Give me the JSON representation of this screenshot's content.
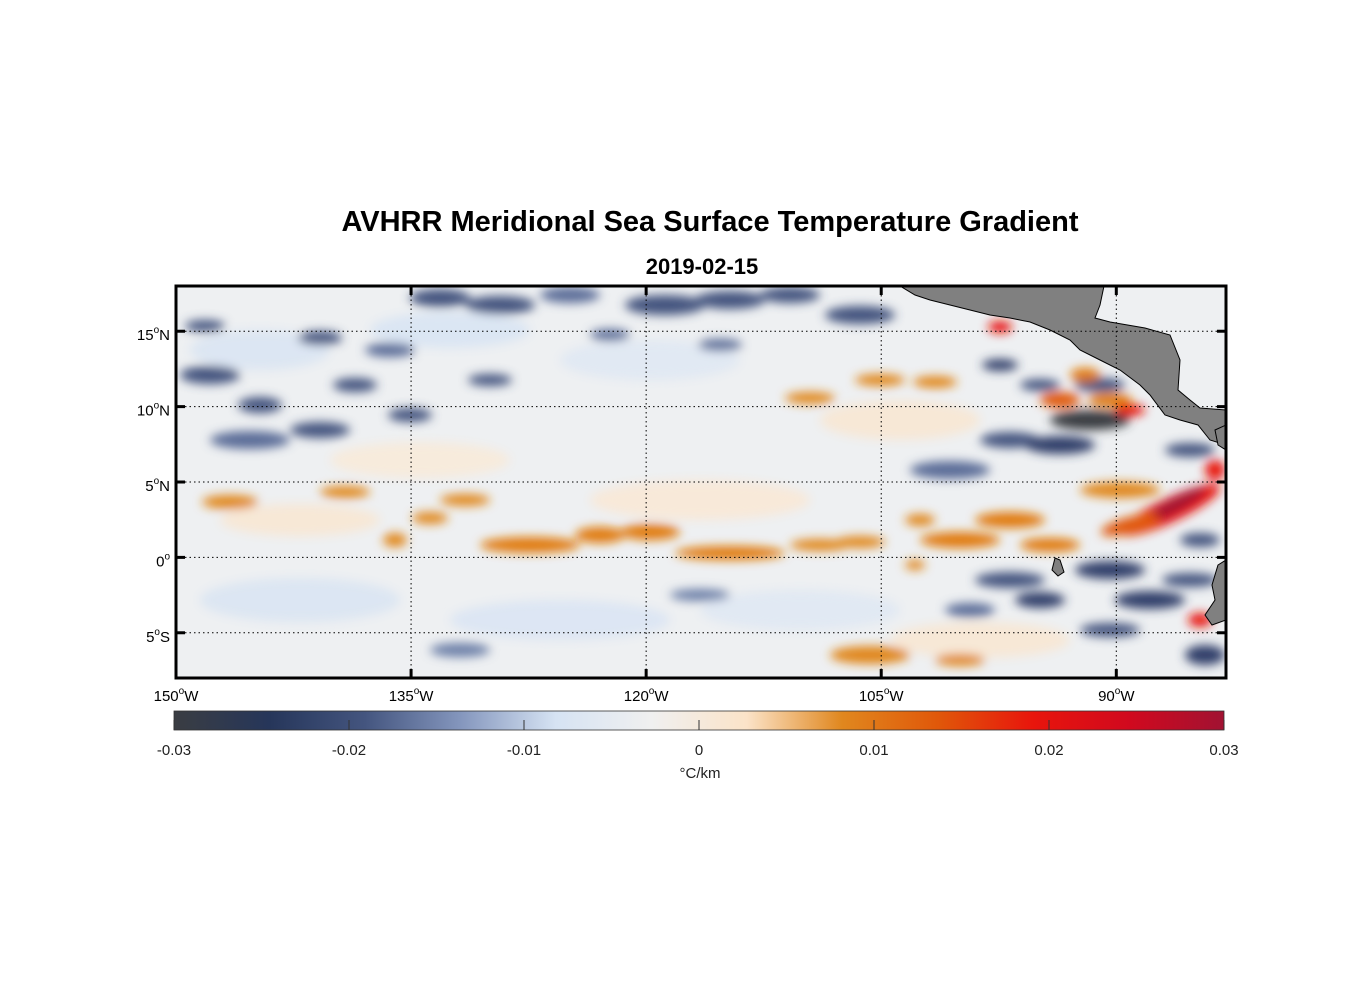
{
  "title": "AVHRR Meridional Sea Surface Temperature Gradient",
  "subtitle": "2019-02-15",
  "map": {
    "lon_range": [
      -150,
      -83
    ],
    "lat_range": [
      -8,
      18
    ],
    "lat_ticks": [
      {
        "value": 15,
        "num": "15",
        "hemi": "N"
      },
      {
        "value": 10,
        "num": "10",
        "hemi": "N"
      },
      {
        "value": 5,
        "num": "5",
        "hemi": "N"
      },
      {
        "value": 0,
        "num": "0",
        "hemi": ""
      },
      {
        "value": -5,
        "num": "5",
        "hemi": "S"
      }
    ],
    "lon_ticks": [
      {
        "value": -150,
        "num": "150",
        "hemi": "W"
      },
      {
        "value": -135,
        "num": "135",
        "hemi": "W"
      },
      {
        "value": -120,
        "num": "120",
        "hemi": "W"
      },
      {
        "value": -105,
        "num": "105",
        "hemi": "W"
      },
      {
        "value": -90,
        "num": "90",
        "hemi": "W"
      }
    ],
    "degree_symbol": "o",
    "land_color": "#808080",
    "grid": "dotted"
  },
  "colorbar": {
    "range": [
      -0.03,
      0.03
    ],
    "ticks": [
      "-0.03",
      "-0.02",
      "-0.01",
      "0",
      "0.01",
      "0.02",
      "0.03"
    ],
    "label": "°C/km",
    "colors": [
      "#3a3d42",
      "#26365a",
      "#44557f",
      "#8496bd",
      "#d6e3f3",
      "#f0f0f0",
      "#fbe3c8",
      "#e0871e",
      "#e0580a",
      "#e8150c",
      "#d1091e",
      "#a11232"
    ]
  }
}
